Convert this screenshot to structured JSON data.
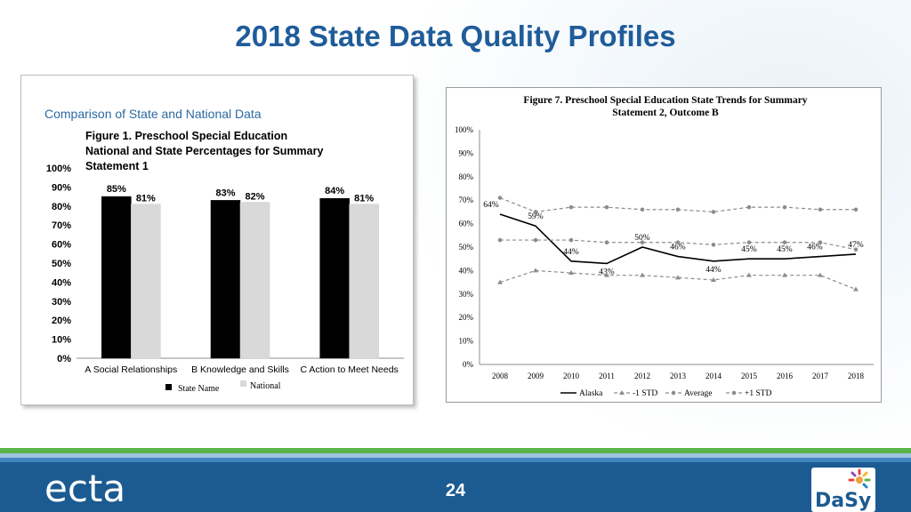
{
  "slide": {
    "title": "2018 State Data Quality Profiles",
    "page_number": "24"
  },
  "logos": {
    "left": "ecta",
    "right": "DaSy"
  },
  "colors": {
    "title": "#1f5c99",
    "footer": "#1b5b92",
    "green_stripe": "#5bb446",
    "left_heading": "#2c6aa0",
    "bar_state": "#000000",
    "bar_national": "#d9d9d9",
    "line_state": "#000000",
    "line_dashed": "#8c8c8c"
  },
  "chart_data": [
    {
      "type": "bar",
      "heading": "Comparison of State and National Data",
      "title": "Figure 1. Preschool Special Education National and State Percentages for Summary Statement 1",
      "categories": [
        "A Social Relationships",
        "B Knowledge and Skills",
        "C Action to Meet Needs"
      ],
      "series": [
        {
          "name": "State Name",
          "values": [
            85,
            83,
            84
          ],
          "labels": [
            "85%",
            "83%",
            "84%"
          ]
        },
        {
          "name": "National",
          "values": [
            81,
            82,
            81
          ],
          "labels": [
            "81%",
            "82%",
            "81%"
          ]
        }
      ],
      "y_ticks": [
        "0%",
        "10%",
        "20%",
        "30%",
        "40%",
        "50%",
        "60%",
        "70%",
        "80%",
        "90%",
        "100%"
      ],
      "ylim": [
        0,
        100
      ],
      "legend_position": "bottom-left"
    },
    {
      "type": "line",
      "title": "Figure 7. Preschool Special Education State Trends for Summary Statement 2, Outcome B",
      "x": [
        "2008",
        "2009",
        "2010",
        "2011",
        "2012",
        "2013",
        "2014",
        "2015",
        "2016",
        "2017",
        "2018"
      ],
      "series": [
        {
          "name": "Alaska",
          "values": [
            64,
            59,
            44,
            43,
            50,
            46,
            44,
            45,
            45,
            46,
            47
          ],
          "labels": [
            "64%",
            "59%",
            "44%",
            "43%",
            "50%",
            "46%",
            "44%",
            "45%",
            "45%",
            "46%",
            "47%"
          ]
        },
        {
          "name": "-1 STD",
          "values": [
            35,
            40,
            39,
            38,
            38,
            37,
            36,
            38,
            38,
            38,
            32
          ]
        },
        {
          "name": "Average",
          "values": [
            53,
            53,
            53,
            52,
            52,
            52,
            51,
            52,
            52,
            52,
            49
          ]
        },
        {
          "name": "+1 STD",
          "values": [
            71,
            65,
            67,
            67,
            66,
            66,
            65,
            67,
            67,
            66,
            66
          ]
        }
      ],
      "y_ticks": [
        "0%",
        "10%",
        "20%",
        "30%",
        "40%",
        "50%",
        "60%",
        "70%",
        "80%",
        "90%",
        "100%"
      ],
      "ylim": [
        0,
        100
      ],
      "legend_position": "bottom"
    }
  ]
}
